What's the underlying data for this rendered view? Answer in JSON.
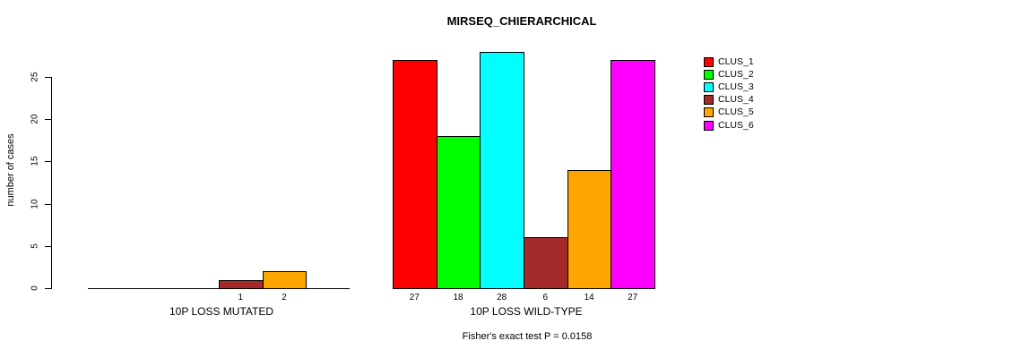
{
  "chart_data": {
    "type": "bar",
    "title": "MIRSEQ_CHIERARCHICAL",
    "subtitle": "Fisher's exact test P = 0.0158",
    "xlabel": "",
    "ylabel": "number of cases",
    "ylim": [
      0,
      28
    ],
    "yticks": [
      0,
      5,
      10,
      15,
      20,
      25
    ],
    "grid": false,
    "legend_position": "right-outside-top",
    "categories": [
      "10P LOSS MUTATED",
      "10P LOSS WILD-TYPE"
    ],
    "series": [
      {
        "name": "CLUS_1",
        "color": "#FF0000",
        "values": [
          0,
          27
        ]
      },
      {
        "name": "CLUS_2",
        "color": "#00FF00",
        "values": [
          0,
          18
        ]
      },
      {
        "name": "CLUS_3",
        "color": "#00FFFF",
        "values": [
          0,
          28
        ]
      },
      {
        "name": "CLUS_4",
        "color": "#A52A2A",
        "values": [
          1,
          6
        ]
      },
      {
        "name": "CLUS_5",
        "color": "#FFA500",
        "values": [
          2,
          14
        ]
      },
      {
        "name": "CLUS_6",
        "color": "#FF00FF",
        "values": [
          0,
          27
        ]
      }
    ],
    "bar_value_label_rule": "shown below bar when value > 0",
    "visible_bar_labels": {
      "10P LOSS MUTATED": [
        1,
        2
      ],
      "10P LOSS WILD-TYPE": [
        27,
        18,
        28,
        6,
        14,
        27
      ]
    }
  }
}
